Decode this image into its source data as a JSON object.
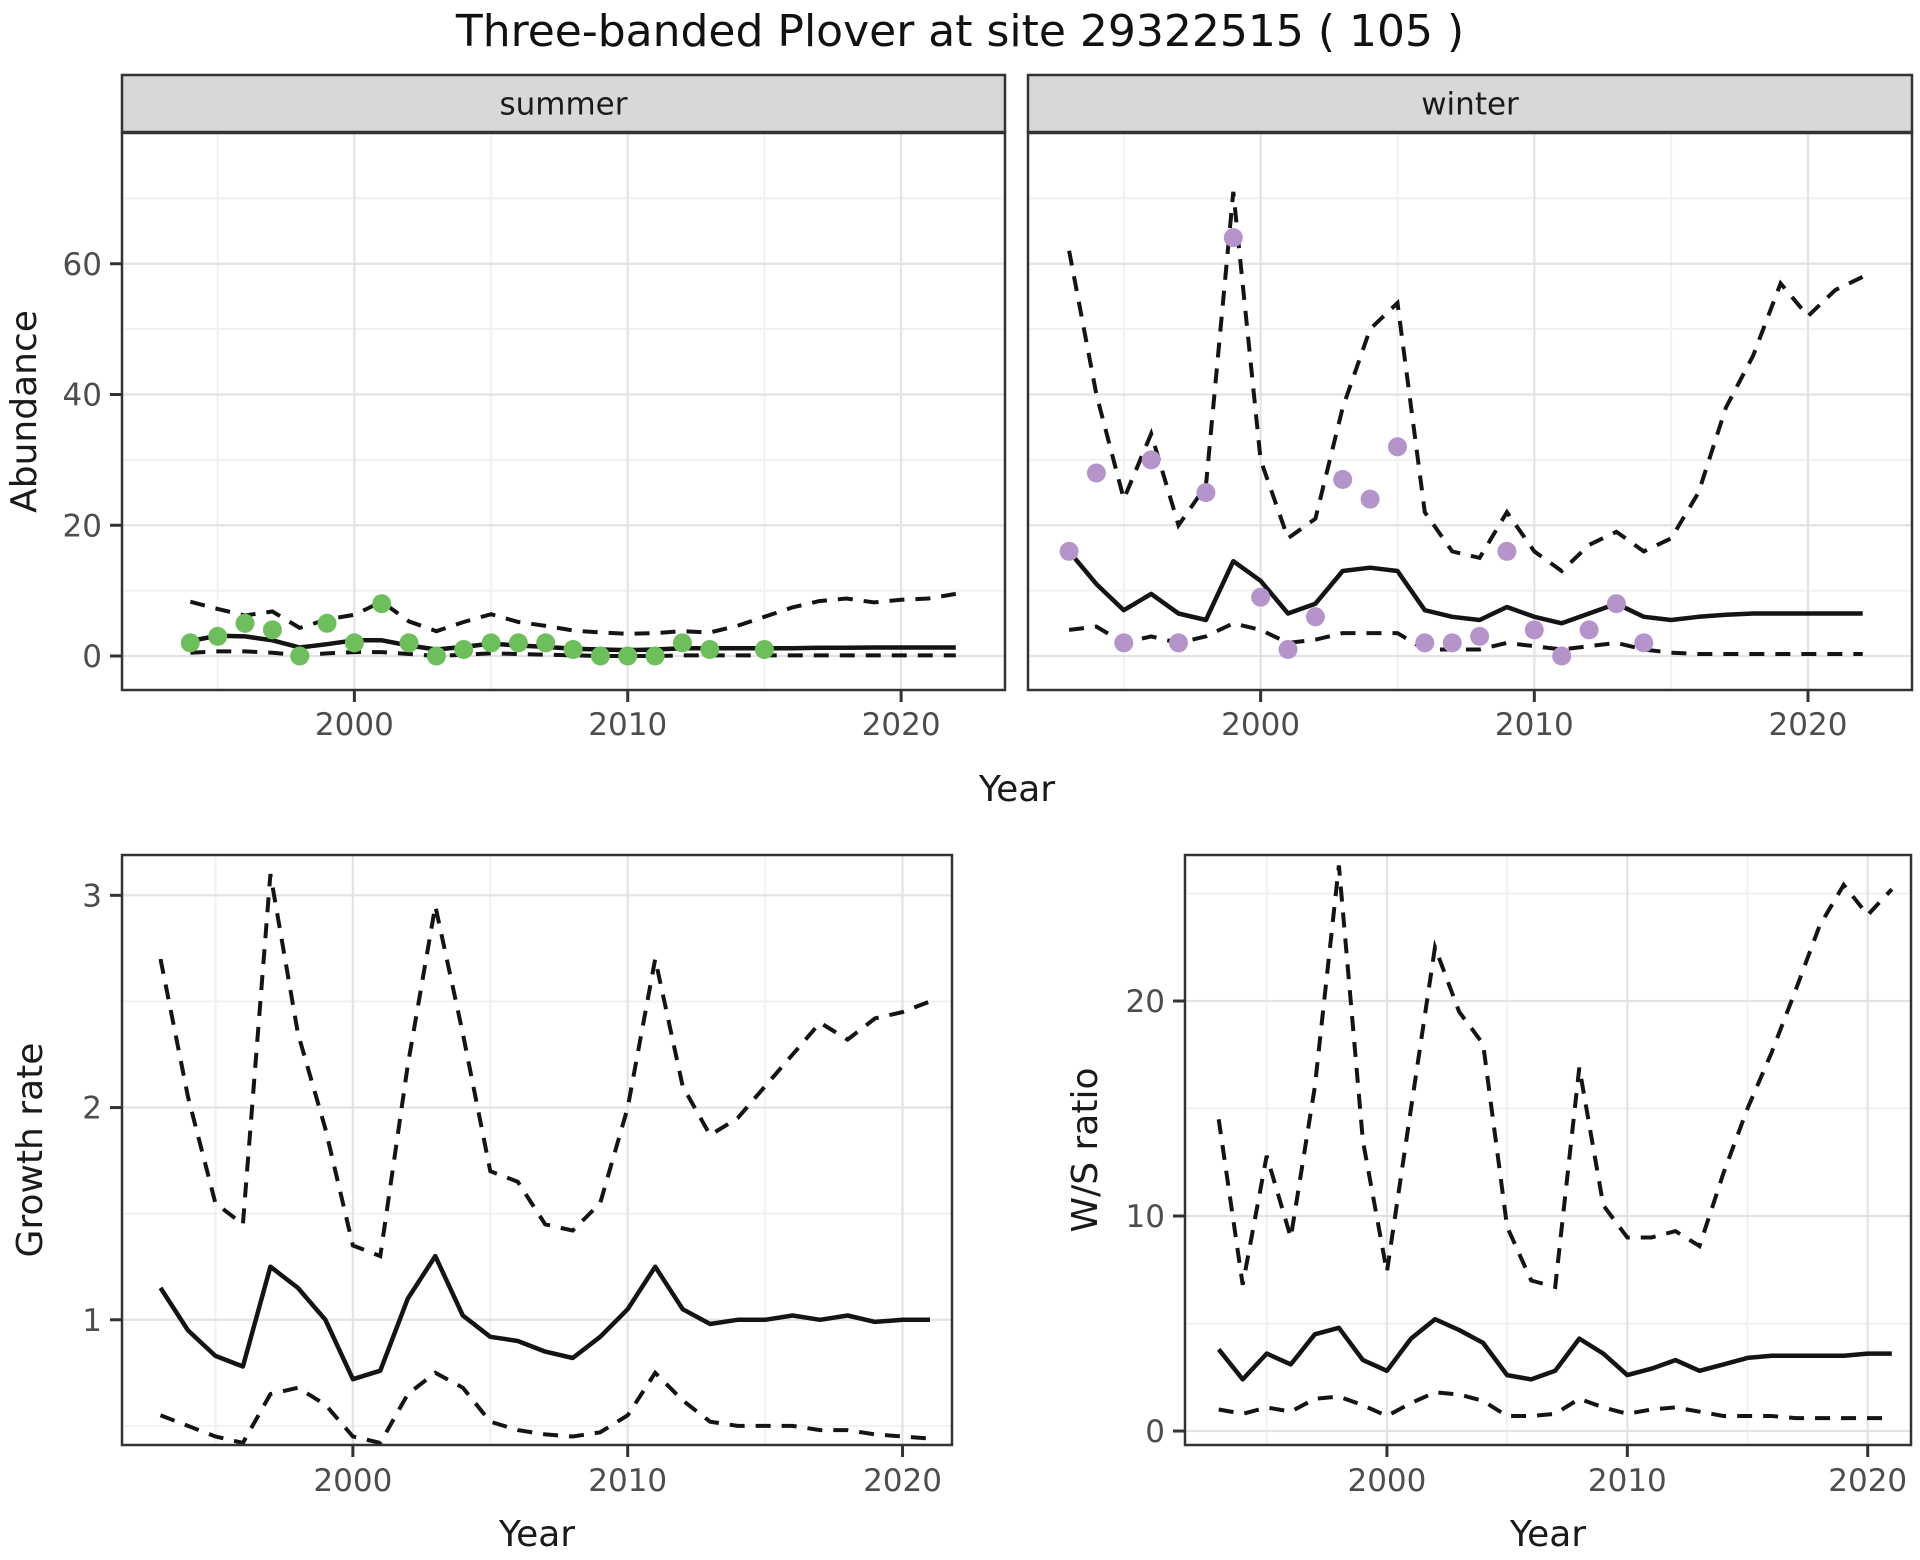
{
  "title": "Three-banded Plover at site 29322515 ( 105 )",
  "colors": {
    "summer_points": "#6CBF5A",
    "winter_points": "#B494CA",
    "line": "#141414",
    "grid_major": "#E3E3E3",
    "grid_minor": "#F1F1F1",
    "panel_border": "#333333",
    "strip_fill": "#D8D8D8",
    "tick_text": "#4D4D4D"
  },
  "chart_data": [
    {
      "id": "abundance",
      "type": "line",
      "title": "",
      "xlabel": "Year",
      "ylabel": "Abundance",
      "xlim": [
        1991.5,
        2023.8
      ],
      "ylim": [
        -5.2,
        80.0
      ],
      "xticks": [
        2000,
        2010,
        2020
      ],
      "xminor": [
        1995,
        2005,
        2015
      ],
      "yticks": [
        0,
        20,
        40,
        60
      ],
      "yminor": [
        10,
        30,
        50,
        70
      ],
      "legend": "none",
      "facets": [
        {
          "label": "summer",
          "point_color": "#6CBF5A",
          "points": {
            "x": [
              1994,
              1995,
              1996,
              1997,
              1998,
              1999,
              2000,
              2001,
              2002,
              2003,
              2004,
              2005,
              2006,
              2007,
              2008,
              2009,
              2010,
              2011,
              2012,
              2013,
              2015
            ],
            "y": [
              2,
              3,
              5,
              4,
              0,
              5,
              2,
              8,
              2,
              0,
              1,
              2,
              2,
              2,
              1,
              0,
              0,
              0,
              2,
              1,
              1
            ]
          },
          "median": {
            "x": [
              1994,
              1995,
              1996,
              1997,
              1998,
              1999,
              2000,
              2001,
              2002,
              2003,
              2004,
              2005,
              2006,
              2007,
              2008,
              2009,
              2010,
              2011,
              2012,
              2013,
              2014,
              2015,
              2016,
              2017,
              2018,
              2019,
              2020,
              2021,
              2022
            ],
            "y": [
              2.3,
              3.1,
              3.0,
              2.4,
              1.3,
              1.8,
              2.4,
              2.4,
              1.6,
              1.0,
              1.4,
              1.9,
              1.6,
              1.4,
              1.1,
              1.0,
              0.9,
              1.0,
              1.2,
              1.2,
              1.2,
              1.2,
              1.2,
              1.25,
              1.25,
              1.3,
              1.3,
              1.3,
              1.3
            ]
          },
          "upper": {
            "x": [
              1994,
              1995,
              1996,
              1997,
              1998,
              1999,
              2000,
              2001,
              2002,
              2003,
              2004,
              2005,
              2006,
              2007,
              2008,
              2009,
              2010,
              2011,
              2012,
              2013,
              2014,
              2015,
              2016,
              2017,
              2018,
              2019,
              2020,
              2021,
              2022
            ],
            "y": [
              8.3,
              7.2,
              6.2,
              6.8,
              4.3,
              5.6,
              6.3,
              8.3,
              5.3,
              3.8,
              5.2,
              6.4,
              5.2,
              4.6,
              3.9,
              3.6,
              3.4,
              3.5,
              3.8,
              3.6,
              4.6,
              6.0,
              7.4,
              8.4,
              8.8,
              8.2,
              8.6,
              8.8,
              9.5
            ]
          },
          "lower": {
            "x": [
              1994,
              1995,
              1996,
              1997,
              1998,
              1999,
              2000,
              2001,
              2002,
              2003,
              2004,
              2005,
              2006,
              2007,
              2008,
              2009,
              2010,
              2011,
              2012,
              2013,
              2014,
              2015,
              2016,
              2017,
              2018,
              2019,
              2020,
              2021,
              2022
            ],
            "y": [
              0.5,
              0.7,
              0.7,
              0.5,
              0.1,
              0.4,
              0.6,
              0.6,
              0.3,
              0.0,
              0.2,
              0.4,
              0.3,
              0.2,
              0.1,
              0.0,
              0.0,
              0.0,
              0.1,
              0.1,
              0.1,
              0.1,
              0.1,
              0.1,
              0.1,
              0.1,
              0.1,
              0.1,
              0.1
            ]
          }
        },
        {
          "label": "winter",
          "point_color": "#B494CA",
          "points": {
            "x": [
              1993,
              1994,
              1995,
              1996,
              1997,
              1998,
              1999,
              2000,
              2001,
              2002,
              2003,
              2004,
              2005,
              2006,
              2007,
              2008,
              2009,
              2010,
              2011,
              2012,
              2013,
              2014
            ],
            "y": [
              16,
              28,
              2,
              30,
              2,
              25,
              64,
              9,
              1,
              6,
              27,
              24,
              32,
              2,
              2,
              3,
              16,
              4,
              0,
              4,
              8,
              2
            ]
          },
          "median": {
            "x": [
              1993,
              1994,
              1995,
              1996,
              1997,
              1998,
              1999,
              2000,
              2001,
              2002,
              2003,
              2004,
              2005,
              2006,
              2007,
              2008,
              2009,
              2010,
              2011,
              2012,
              2013,
              2014,
              2015,
              2016,
              2017,
              2018,
              2019,
              2020,
              2021,
              2022
            ],
            "y": [
              16,
              11,
              7,
              9.5,
              6.5,
              5.5,
              14.5,
              11.5,
              6.5,
              8,
              13,
              13.5,
              13,
              7,
              6,
              5.5,
              7.5,
              6,
              5,
              6.5,
              8,
              6,
              5.5,
              6,
              6.3,
              6.5,
              6.5,
              6.5,
              6.5,
              6.5
            ]
          },
          "upper": {
            "x": [
              1993,
              1994,
              1995,
              1996,
              1997,
              1998,
              1999,
              2000,
              2001,
              2002,
              2003,
              2004,
              2005,
              2006,
              2007,
              2008,
              2009,
              2010,
              2011,
              2012,
              2013,
              2014,
              2015,
              2016,
              2017,
              2018,
              2019,
              2020,
              2021,
              2022
            ],
            "y": [
              62,
              40,
              24,
              34,
              20,
              26,
              71,
              30,
              18,
              21,
              38,
              50,
              54,
              22,
              16,
              15,
              22,
              16,
              13,
              17,
              19,
              16,
              18,
              25,
              38,
              46,
              57,
              52,
              56,
              58
            ]
          },
          "lower": {
            "x": [
              1993,
              1994,
              1995,
              1996,
              1997,
              1998,
              1999,
              2000,
              2001,
              2002,
              2003,
              2004,
              2005,
              2006,
              2007,
              2008,
              2009,
              2010,
              2011,
              2012,
              2013,
              2014,
              2015,
              2016,
              2017,
              2018,
              2019,
              2020,
              2021,
              2022
            ],
            "y": [
              4,
              4.5,
              2,
              3,
              2,
              3,
              5,
              4,
              2,
              2.5,
              3.5,
              3.5,
              3.5,
              1,
              1,
              1,
              2,
              1.5,
              1,
              1.5,
              2,
              1,
              0.5,
              0.3,
              0.3,
              0.3,
              0.3,
              0.3,
              0.3,
              0.3
            ]
          }
        }
      ]
    },
    {
      "id": "growth",
      "type": "line",
      "title": "",
      "xlabel": "Year",
      "ylabel": "Growth rate",
      "xlim": [
        1991.6,
        2021.8
      ],
      "ylim": [
        0.41,
        3.19
      ],
      "xticks": [
        2000,
        2010,
        2020
      ],
      "xminor": [
        1995,
        2005,
        2015
      ],
      "yticks": [
        1,
        2,
        3
      ],
      "yminor": [
        0.5,
        1.5,
        2.5
      ],
      "legend": "none",
      "median": {
        "x": [
          1993,
          1994,
          1995,
          1996,
          1997,
          1998,
          1999,
          2000,
          2001,
          2002,
          2003,
          2004,
          2005,
          2006,
          2007,
          2008,
          2009,
          2010,
          2011,
          2012,
          2013,
          2014,
          2015,
          2016,
          2017,
          2018,
          2019,
          2020,
          2021
        ],
        "y": [
          1.15,
          0.95,
          0.83,
          0.78,
          1.25,
          1.15,
          1.0,
          0.72,
          0.76,
          1.1,
          1.3,
          1.02,
          0.92,
          0.9,
          0.85,
          0.82,
          0.92,
          1.05,
          1.25,
          1.05,
          0.98,
          1.0,
          1.0,
          1.02,
          1.0,
          1.02,
          0.99,
          1.0,
          1.0
        ]
      },
      "upper": {
        "x": [
          1993,
          1994,
          1995,
          1996,
          1997,
          1998,
          1999,
          2000,
          2001,
          2002,
          2003,
          2004,
          2005,
          2006,
          2007,
          2008,
          2009,
          2010,
          2011,
          2012,
          2013,
          2014,
          2015,
          2016,
          2017,
          2018,
          2019,
          2020,
          2021
        ],
        "y": [
          2.7,
          2.05,
          1.55,
          1.45,
          3.1,
          2.35,
          1.9,
          1.35,
          1.3,
          2.2,
          2.95,
          2.35,
          1.7,
          1.65,
          1.45,
          1.42,
          1.55,
          2.0,
          2.7,
          2.1,
          1.87,
          1.95,
          2.1,
          2.25,
          2.4,
          2.32,
          2.42,
          2.45,
          2.5
        ]
      },
      "lower": {
        "x": [
          1993,
          1994,
          1995,
          1996,
          1997,
          1998,
          1999,
          2000,
          2001,
          2002,
          2003,
          2004,
          2005,
          2006,
          2007,
          2008,
          2009,
          2010,
          2011,
          2012,
          2013,
          2014,
          2015,
          2016,
          2017,
          2018,
          2019,
          2020,
          2021
        ],
        "y": [
          0.55,
          0.5,
          0.45,
          0.42,
          0.65,
          0.68,
          0.6,
          0.45,
          0.42,
          0.65,
          0.75,
          0.68,
          0.52,
          0.48,
          0.46,
          0.45,
          0.47,
          0.55,
          0.75,
          0.62,
          0.52,
          0.5,
          0.5,
          0.5,
          0.48,
          0.48,
          0.46,
          0.45,
          0.44
        ]
      }
    },
    {
      "id": "ws",
      "type": "line",
      "title": "",
      "xlabel": "Year",
      "ylabel": "W/S ratio",
      "xlim": [
        1991.6,
        2021.8
      ],
      "ylim": [
        -0.65,
        26.79
      ],
      "xticks": [
        2000,
        2010,
        2020
      ],
      "xminor": [
        1995,
        2005,
        2015
      ],
      "yticks": [
        0,
        10,
        20
      ],
      "yminor": [
        5,
        15,
        25
      ],
      "legend": "none",
      "median": {
        "x": [
          1993,
          1994,
          1995,
          1996,
          1997,
          1998,
          1999,
          2000,
          2001,
          2002,
          2003,
          2004,
          2005,
          2006,
          2007,
          2008,
          2009,
          2010,
          2011,
          2012,
          2013,
          2014,
          2015,
          2016,
          2017,
          2018,
          2019,
          2020,
          2021
        ],
        "y": [
          3.8,
          2.4,
          3.6,
          3.1,
          4.5,
          4.8,
          3.3,
          2.8,
          4.3,
          5.2,
          4.7,
          4.1,
          2.6,
          2.4,
          2.8,
          4.3,
          3.6,
          2.6,
          2.9,
          3.3,
          2.8,
          3.1,
          3.4,
          3.5,
          3.5,
          3.5,
          3.5,
          3.6,
          3.6
        ]
      },
      "upper": {
        "x": [
          1993,
          1994,
          1995,
          1996,
          1997,
          1998,
          1999,
          2000,
          2001,
          2002,
          2003,
          2004,
          2005,
          2006,
          2007,
          2008,
          2009,
          2010,
          2011,
          2012,
          2013,
          2014,
          2015,
          2016,
          2017,
          2018,
          2019,
          2020,
          2021
        ],
        "y": [
          14.5,
          6.8,
          12.8,
          9.0,
          16.0,
          26.3,
          13.5,
          7.4,
          15.0,
          22.5,
          19.5,
          18.0,
          9.5,
          7.0,
          6.7,
          16.9,
          10.5,
          9.0,
          9.0,
          9.3,
          8.6,
          12.0,
          15.0,
          17.6,
          20.5,
          23.5,
          25.4,
          24.0,
          25.2
        ]
      },
      "lower": {
        "x": [
          1993,
          1994,
          1995,
          1996,
          1997,
          1998,
          1999,
          2000,
          2001,
          2002,
          2003,
          2004,
          2005,
          2006,
          2007,
          2008,
          2009,
          2010,
          2011,
          2012,
          2013,
          2014,
          2015,
          2016,
          2017,
          2018,
          2019,
          2020,
          2021
        ],
        "y": [
          1.0,
          0.8,
          1.1,
          0.9,
          1.5,
          1.6,
          1.2,
          0.7,
          1.3,
          1.8,
          1.7,
          1.4,
          0.7,
          0.7,
          0.8,
          1.5,
          1.1,
          0.8,
          1.0,
          1.1,
          0.9,
          0.7,
          0.7,
          0.7,
          0.6,
          0.6,
          0.6,
          0.6,
          0.6
        ]
      }
    }
  ]
}
